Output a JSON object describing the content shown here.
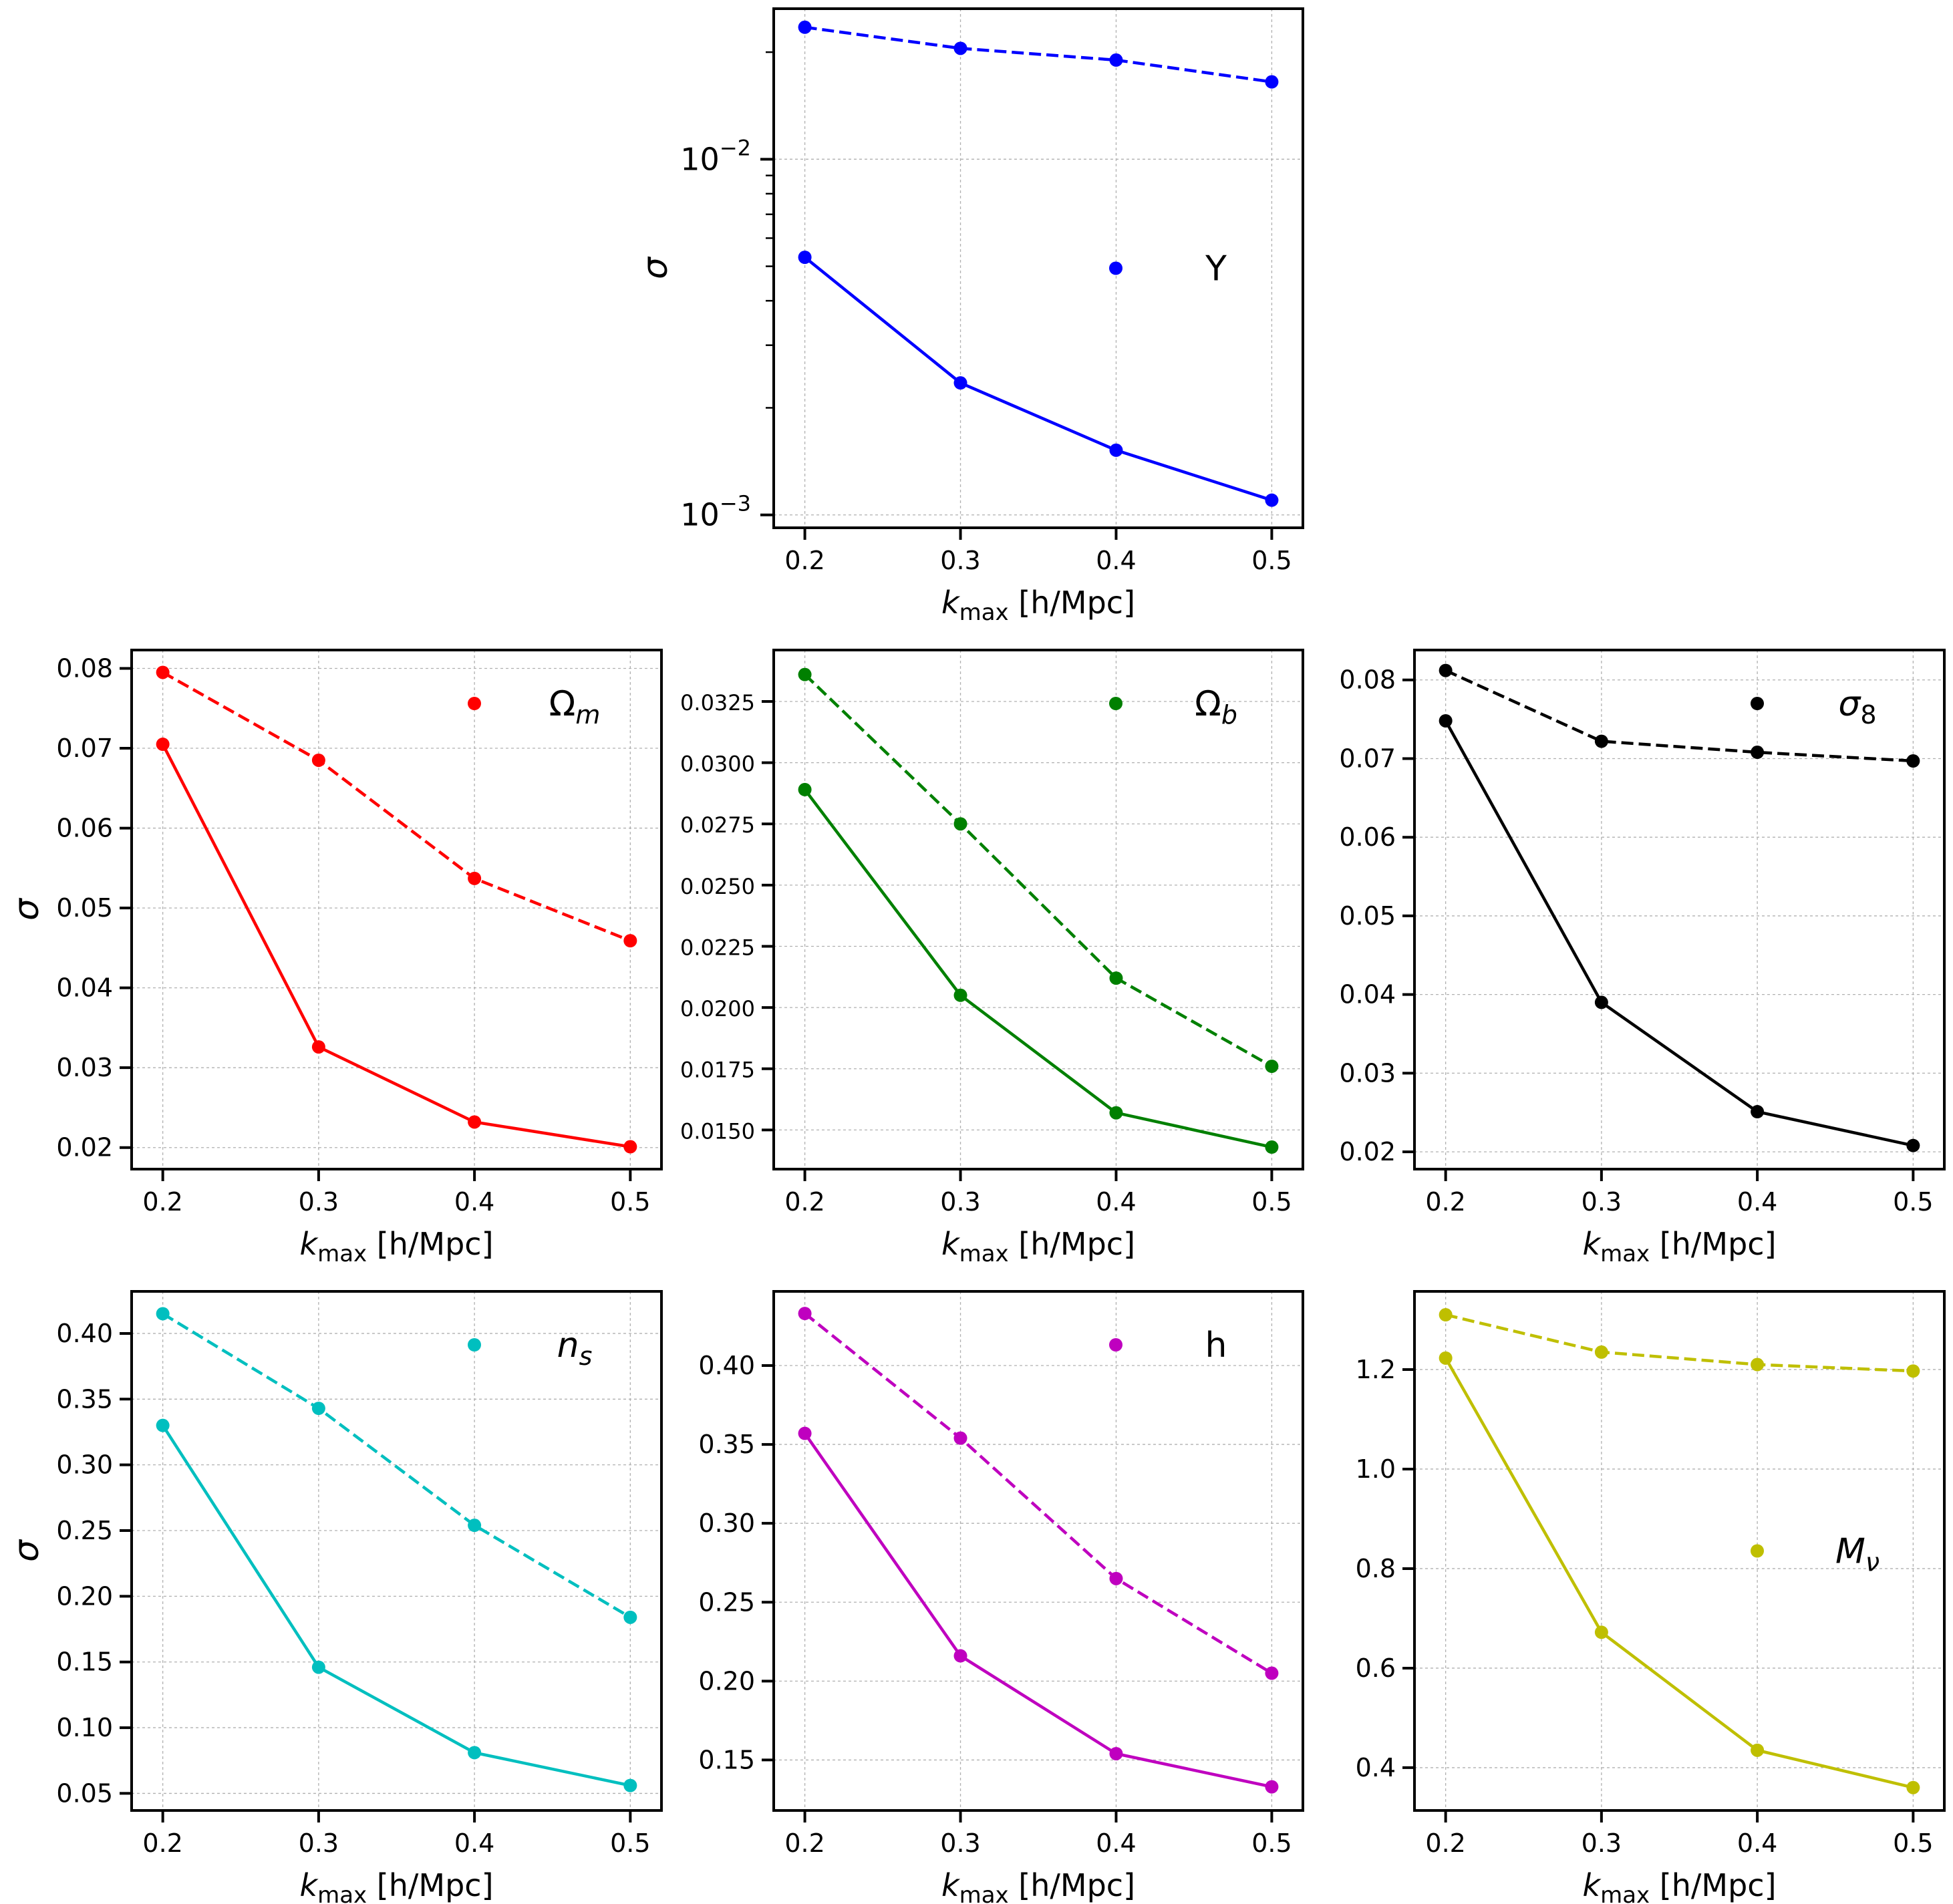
{
  "chart_data": [
    {
      "id": "Y",
      "type": "line",
      "legend_label": "Y",
      "legend_italic": false,
      "legend_position": "center-right",
      "color": "#0000ff",
      "x": [
        0.2,
        0.3,
        0.4,
        0.5
      ],
      "xticks": [
        "0.2",
        "0.3",
        "0.4",
        "0.5"
      ],
      "xlim": [
        0.18,
        0.52
      ],
      "xlabel_main": "k",
      "xlabel_sub": "max",
      "xlabel_unit": " [h/Mpc]",
      "ylabel": "σ",
      "yscale": "log",
      "ylim": [
        0.00092,
        0.0265
      ],
      "yticks": [
        {
          "value": 0.001,
          "base": "10",
          "exp": "−3"
        },
        {
          "value": 0.01,
          "base": "10",
          "exp": "−2"
        }
      ],
      "grid": true,
      "series": [
        {
          "style": "dashed",
          "values": [
            0.0235,
            0.0205,
            0.019,
            0.0165
          ]
        },
        {
          "style": "solid",
          "values": [
            0.0053,
            0.00235,
            0.00152,
            0.0011
          ]
        }
      ]
    },
    {
      "id": "Omega_m",
      "type": "line",
      "legend_label": "Ωm",
      "legend_main": "Ω",
      "legend_sub": "m",
      "legend_position": "top-right",
      "color": "#ff0000",
      "x": [
        0.2,
        0.3,
        0.4,
        0.5
      ],
      "xticks": [
        "0.2",
        "0.3",
        "0.4",
        "0.5"
      ],
      "xlim": [
        0.18,
        0.52
      ],
      "xlabel_main": "k",
      "xlabel_sub": "max",
      "xlabel_unit": " [h/Mpc]",
      "ylabel": "σ",
      "yscale": "linear",
      "ylim": [
        0.0173,
        0.0823
      ],
      "yticks": [
        "0.02",
        "0.03",
        "0.04",
        "0.05",
        "0.06",
        "0.07",
        "0.08"
      ],
      "ytick_values": [
        0.02,
        0.03,
        0.04,
        0.05,
        0.06,
        0.07,
        0.08
      ],
      "grid": true,
      "series": [
        {
          "style": "dashed",
          "values": [
            0.0795,
            0.0685,
            0.0537,
            0.0459
          ]
        },
        {
          "style": "solid",
          "values": [
            0.0705,
            0.0326,
            0.0232,
            0.0201
          ]
        }
      ]
    },
    {
      "id": "Omega_b",
      "type": "line",
      "legend_label": "Ωb",
      "legend_main": "Ω",
      "legend_sub": "b",
      "legend_position": "top-right",
      "color": "#008000",
      "x": [
        0.2,
        0.3,
        0.4,
        0.5
      ],
      "xticks": [
        "0.2",
        "0.3",
        "0.4",
        "0.5"
      ],
      "xlim": [
        0.18,
        0.52
      ],
      "xlabel_main": "k",
      "xlabel_sub": "max",
      "xlabel_unit": " [h/Mpc]",
      "ylabel": "",
      "yscale": "linear",
      "ylim": [
        0.0134,
        0.0346
      ],
      "yticks": [
        "0.0150",
        "0.0175",
        "0.0200",
        "0.0225",
        "0.0250",
        "0.0275",
        "0.0300",
        "0.0325"
      ],
      "ytick_values": [
        0.015,
        0.0175,
        0.02,
        0.0225,
        0.025,
        0.0275,
        0.03,
        0.0325
      ],
      "grid": true,
      "series": [
        {
          "style": "dashed",
          "values": [
            0.0336,
            0.0275,
            0.0212,
            0.0176
          ]
        },
        {
          "style": "solid",
          "values": [
            0.0289,
            0.0205,
            0.0157,
            0.0143
          ]
        }
      ]
    },
    {
      "id": "sigma_8",
      "type": "line",
      "legend_label": "σ8",
      "legend_main": "σ",
      "legend_sub": "8",
      "legend_position": "top-right",
      "color": "#000000",
      "x": [
        0.2,
        0.3,
        0.4,
        0.5
      ],
      "xticks": [
        "0.2",
        "0.3",
        "0.4",
        "0.5"
      ],
      "xlim": [
        0.18,
        0.52
      ],
      "xlabel_main": "k",
      "xlabel_sub": "max",
      "xlabel_unit": " [h/Mpc]",
      "ylabel": "",
      "yscale": "linear",
      "ylim": [
        0.0178,
        0.0838
      ],
      "yticks": [
        "0.02",
        "0.03",
        "0.04",
        "0.05",
        "0.06",
        "0.07",
        "0.08"
      ],
      "ytick_values": [
        0.02,
        0.03,
        0.04,
        0.05,
        0.06,
        0.07,
        0.08
      ],
      "grid": true,
      "series": [
        {
          "style": "dashed",
          "values": [
            0.0812,
            0.0722,
            0.0708,
            0.0697
          ]
        },
        {
          "style": "solid",
          "values": [
            0.0748,
            0.039,
            0.0251,
            0.0208
          ]
        }
      ]
    },
    {
      "id": "n_s",
      "type": "line",
      "legend_label": "ns",
      "legend_main": "n",
      "legend_sub": "s",
      "legend_italic": true,
      "legend_position": "top-right",
      "color": "#00bfbf",
      "x": [
        0.2,
        0.3,
        0.4,
        0.5
      ],
      "xticks": [
        "0.2",
        "0.3",
        "0.4",
        "0.5"
      ],
      "xlim": [
        0.18,
        0.52
      ],
      "xlabel_main": "k",
      "xlabel_sub": "max",
      "xlabel_unit": " [h/Mpc]",
      "ylabel": "σ",
      "yscale": "linear",
      "ylim": [
        0.037,
        0.432
      ],
      "yticks": [
        "0.05",
        "0.10",
        "0.15",
        "0.20",
        "0.25",
        "0.30",
        "0.35",
        "0.40"
      ],
      "ytick_values": [
        0.05,
        0.1,
        0.15,
        0.2,
        0.25,
        0.3,
        0.35,
        0.4
      ],
      "grid": true,
      "series": [
        {
          "style": "dashed",
          "values": [
            0.415,
            0.343,
            0.254,
            0.184
          ]
        },
        {
          "style": "solid",
          "values": [
            0.33,
            0.146,
            0.081,
            0.056
          ]
        }
      ]
    },
    {
      "id": "h",
      "type": "line",
      "legend_label": "h",
      "legend_italic": false,
      "legend_position": "top-right",
      "color": "#bf00bf",
      "x": [
        0.2,
        0.3,
        0.4,
        0.5
      ],
      "xticks": [
        "0.2",
        "0.3",
        "0.4",
        "0.5"
      ],
      "xlim": [
        0.18,
        0.52
      ],
      "xlabel_main": "k",
      "xlabel_sub": "max",
      "xlabel_unit": " [h/Mpc]",
      "ylabel": "",
      "yscale": "linear",
      "ylim": [
        0.118,
        0.447
      ],
      "yticks": [
        "0.15",
        "0.20",
        "0.25",
        "0.30",
        "0.35",
        "0.40"
      ],
      "ytick_values": [
        0.15,
        0.2,
        0.25,
        0.3,
        0.35,
        0.4
      ],
      "grid": true,
      "series": [
        {
          "style": "dashed",
          "values": [
            0.433,
            0.354,
            0.265,
            0.205
          ]
        },
        {
          "style": "solid",
          "values": [
            0.357,
            0.216,
            0.154,
            0.133
          ]
        }
      ]
    },
    {
      "id": "M_nu",
      "type": "line",
      "legend_label": "Mν",
      "legend_main": "M",
      "legend_sub": "ν",
      "legend_italic": true,
      "legend_position": "center-right",
      "color": "#bfbf00",
      "x": [
        0.2,
        0.3,
        0.4,
        0.5
      ],
      "xticks": [
        "0.2",
        "0.3",
        "0.4",
        "0.5"
      ],
      "xlim": [
        0.18,
        0.52
      ],
      "xlabel_main": "k",
      "xlabel_sub": "max",
      "xlabel_unit": " [h/Mpc]",
      "ylabel": "",
      "yscale": "linear",
      "ylim": [
        0.314,
        1.357
      ],
      "yticks": [
        "0.4",
        "0.6",
        "0.8",
        "1.0",
        "1.2"
      ],
      "ytick_values": [
        0.4,
        0.6,
        0.8,
        1.0,
        1.2
      ],
      "grid": true,
      "series": [
        {
          "style": "dashed",
          "values": [
            1.31,
            1.235,
            1.21,
            1.197
          ]
        },
        {
          "style": "solid",
          "values": [
            1.223,
            0.672,
            0.435,
            0.36
          ]
        }
      ]
    }
  ]
}
